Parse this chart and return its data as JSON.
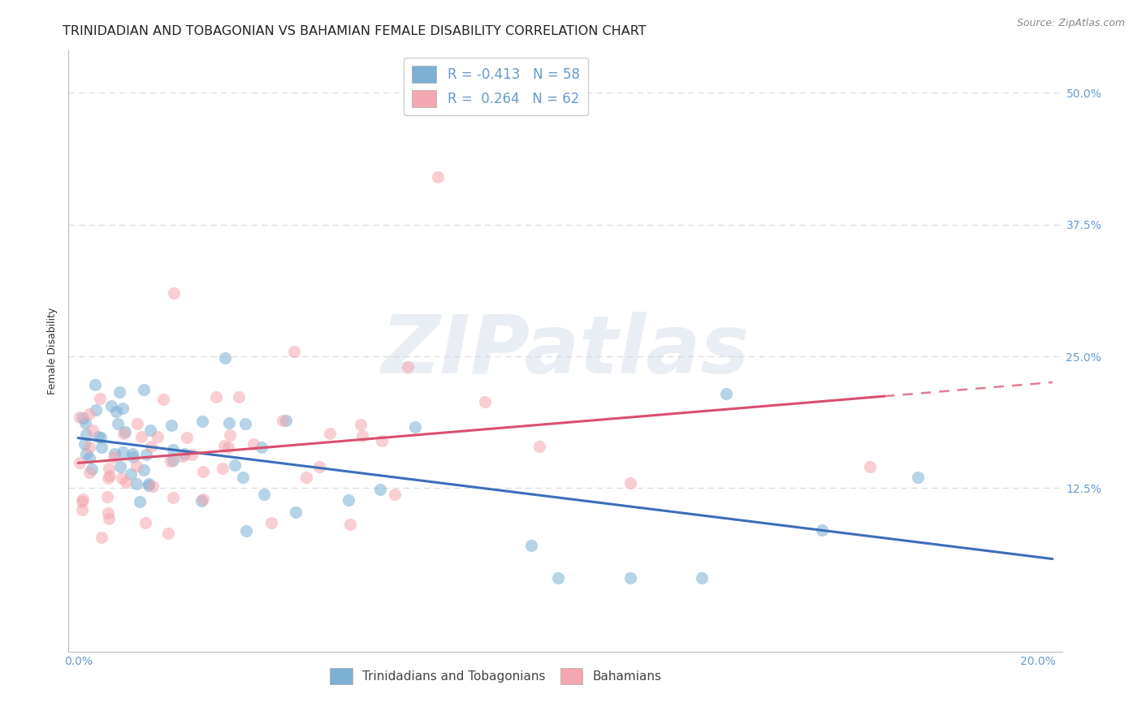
{
  "title": "TRINIDADIAN AND TOBAGONIAN VS BAHAMIAN FEMALE DISABILITY CORRELATION CHART",
  "source": "Source: ZipAtlas.com",
  "ylabel": "Female Disability",
  "xlim": [
    -0.002,
    0.205
  ],
  "ylim": [
    -0.03,
    0.54
  ],
  "ytick_vals": [
    0.0,
    0.125,
    0.25,
    0.375,
    0.5
  ],
  "ytick_labels": [
    "",
    "12.5%",
    "25.0%",
    "37.5%",
    "50.0%"
  ],
  "xtick_vals": [
    0.0,
    0.05,
    0.1,
    0.15,
    0.2
  ],
  "xtick_labels": [
    "0.0%",
    "",
    "",
    "",
    "20.0%"
  ],
  "blue_color": "#7BAFD4",
  "pink_color": "#F4A7B0",
  "blue_line_color": "#3B6EBA",
  "pink_line_color": "#D94F6E",
  "blue_R": -0.413,
  "blue_N": 58,
  "pink_R": 0.264,
  "pink_N": 62,
  "blue_label": "Trinidadians and Tobagonians",
  "pink_label": "Bahamians",
  "watermark": "ZIPatlas",
  "bg_color": "#ffffff",
  "grid_color": "#dddddd",
  "tick_color": "#6699CC",
  "title_fontsize": 11.5,
  "axis_label_fontsize": 9,
  "tick_fontsize": 10,
  "legend_fontsize": 12,
  "source_fontsize": 9,
  "scatter_size": 120,
  "scatter_alpha": 0.55,
  "scatter_lw": 1.2
}
